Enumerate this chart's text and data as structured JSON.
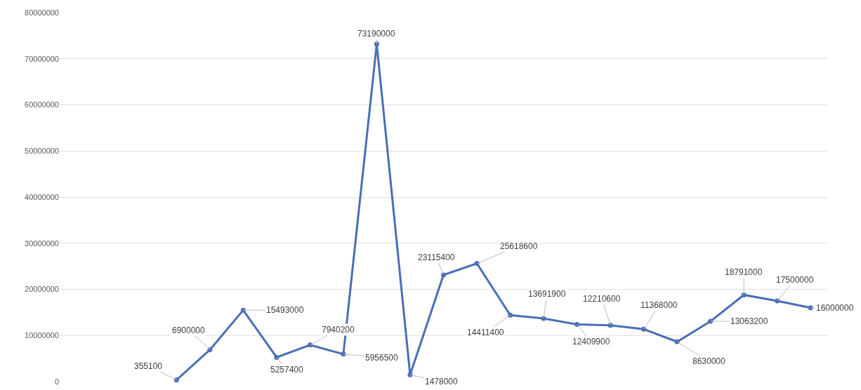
{
  "chart_data": {
    "type": "line",
    "categories": [
      null,
      null,
      null,
      null,
      null,
      null,
      null,
      null,
      null,
      null,
      null,
      null,
      null,
      null,
      null,
      null,
      null,
      null,
      null,
      null,
      null,
      null,
      null
    ],
    "series": [
      {
        "color": "#4a6fb5",
        "values": [
          null,
          null,
          null,
          355100,
          6900000,
          15493000,
          5257400,
          7940200,
          5956500,
          73190000,
          1478000,
          23115400,
          25618600,
          14411400,
          13691900,
          12409900,
          12210600,
          11368000,
          8630000,
          13063200,
          18791000,
          17500000,
          16000000
        ]
      }
    ],
    "ylim": [
      0,
      80000000
    ],
    "yticks": [
      0,
      10000000,
      20000000,
      30000000,
      40000000,
      50000000,
      60000000,
      70000000,
      80000000
    ],
    "data_labels": true,
    "grid": true,
    "marker": "circle",
    "line_style": "solid"
  }
}
